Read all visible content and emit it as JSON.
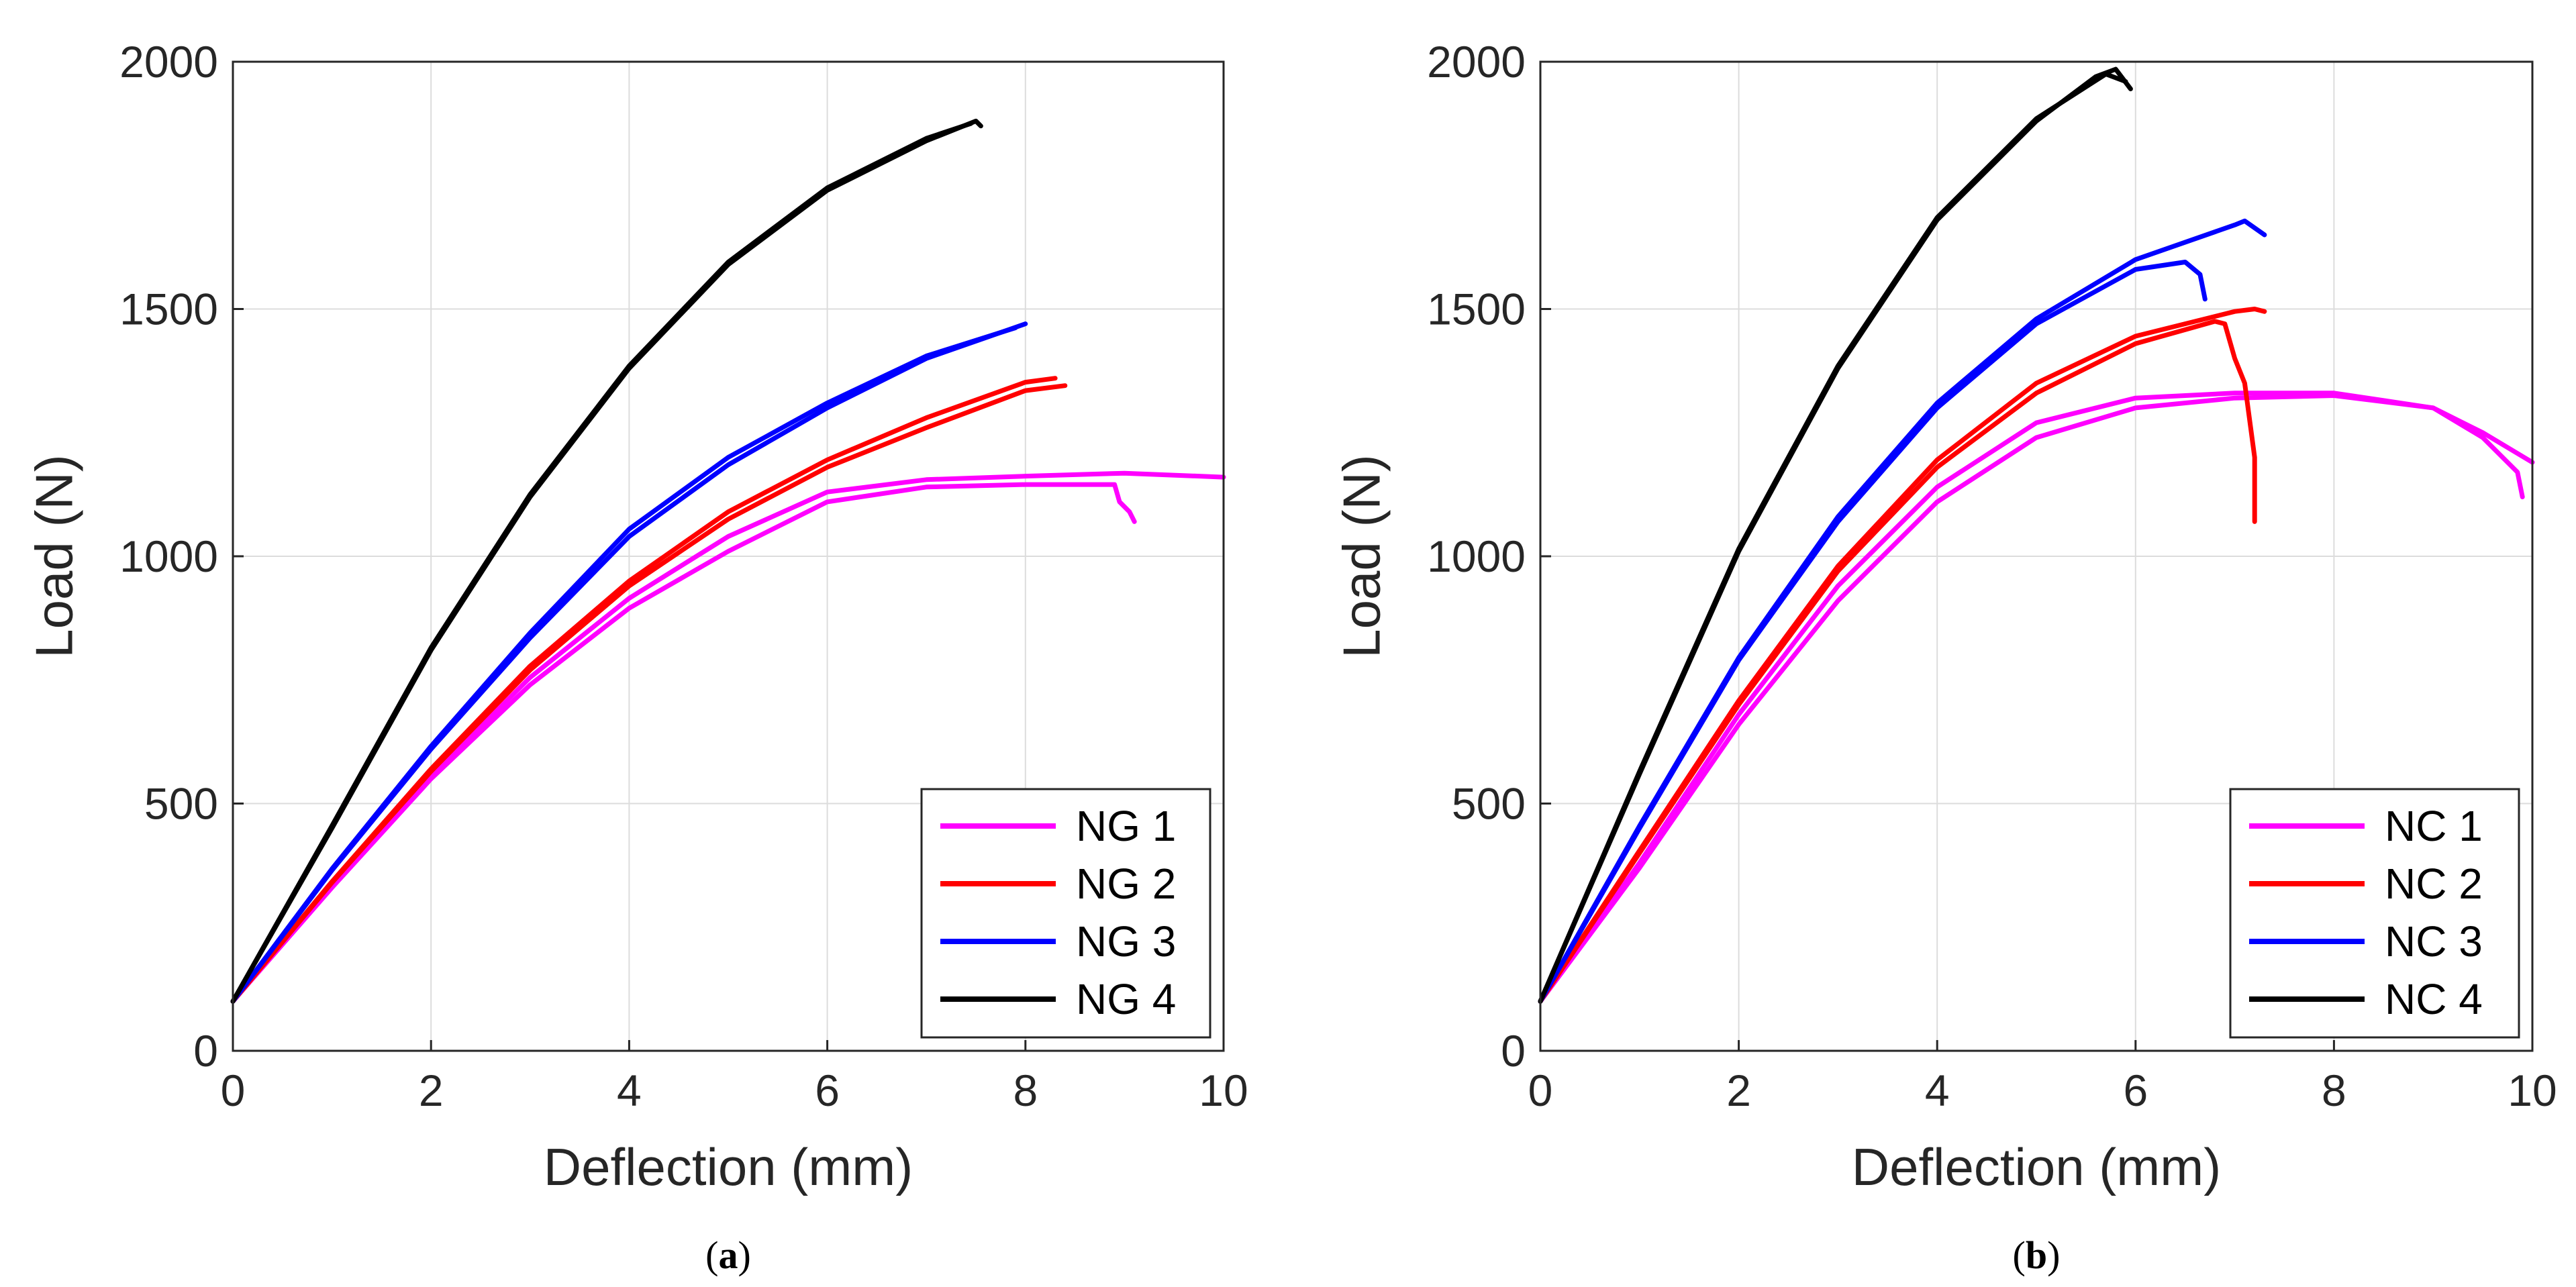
{
  "chart_data": [
    {
      "panel_label": "a",
      "type": "line",
      "xlabel": "Deflection (mm)",
      "ylabel": "Load (N)",
      "xlim": [
        0,
        10
      ],
      "ylim": [
        0,
        2000
      ],
      "xticks": [
        0,
        2,
        4,
        6,
        8,
        10
      ],
      "yticks": [
        0,
        500,
        1000,
        1500,
        2000
      ],
      "grid": true,
      "legend_position": "bottom-right",
      "series": [
        {
          "name": "NG 1",
          "color": "#ff00ff",
          "curves": [
            [
              [
                0,
                100
              ],
              [
                1,
                330
              ],
              [
                2,
                550
              ],
              [
                3,
                740
              ],
              [
                4,
                895
              ],
              [
                5,
                1010
              ],
              [
                6,
                1110
              ],
              [
                7,
                1140
              ],
              [
                8,
                1145
              ],
              [
                8.9,
                1145
              ],
              [
                8.95,
                1110
              ],
              [
                9.05,
                1090
              ],
              [
                9.1,
                1070
              ]
            ],
            [
              [
                0,
                100
              ],
              [
                1,
                335
              ],
              [
                2,
                555
              ],
              [
                3,
                755
              ],
              [
                4,
                915
              ],
              [
                5,
                1040
              ],
              [
                6,
                1130
              ],
              [
                7,
                1155
              ],
              [
                8,
                1162
              ],
              [
                9,
                1168
              ],
              [
                10,
                1160
              ]
            ]
          ]
        },
        {
          "name": "NG 2",
          "color": "#ff0000",
          "curves": [
            [
              [
                0,
                100
              ],
              [
                1,
                340
              ],
              [
                2,
                565
              ],
              [
                3,
                770
              ],
              [
                4,
                940
              ],
              [
                5,
                1075
              ],
              [
                6,
                1180
              ],
              [
                7,
                1260
              ],
              [
                8,
                1335
              ],
              [
                8.4,
                1345
              ]
            ],
            [
              [
                0,
                100
              ],
              [
                1,
                342
              ],
              [
                2,
                570
              ],
              [
                3,
                778
              ],
              [
                4,
                950
              ],
              [
                5,
                1090
              ],
              [
                6,
                1195
              ],
              [
                7,
                1280
              ],
              [
                8,
                1352
              ],
              [
                8.3,
                1360
              ]
            ]
          ]
        },
        {
          "name": "NG 3",
          "color": "#0000ff",
          "curves": [
            [
              [
                0,
                100
              ],
              [
                1,
                365
              ],
              [
                2,
                610
              ],
              [
                3,
                835
              ],
              [
                4,
                1040
              ],
              [
                5,
                1185
              ],
              [
                6,
                1300
              ],
              [
                7,
                1400
              ],
              [
                8,
                1470
              ]
            ],
            [
              [
                0,
                100
              ],
              [
                1,
                368
              ],
              [
                2,
                616
              ],
              [
                3,
                845
              ],
              [
                4,
                1055
              ],
              [
                5,
                1200
              ],
              [
                6,
                1310
              ],
              [
                7,
                1405
              ],
              [
                7.9,
                1462
              ]
            ]
          ]
        },
        {
          "name": "NG 4",
          "color": "#000000",
          "curves": [
            [
              [
                0,
                100
              ],
              [
                1,
                450
              ],
              [
                2,
                810
              ],
              [
                3,
                1120
              ],
              [
                4,
                1380
              ],
              [
                5,
                1590
              ],
              [
                6,
                1740
              ],
              [
                7,
                1840
              ],
              [
                7.5,
                1880
              ],
              [
                7.55,
                1870
              ]
            ],
            [
              [
                0,
                100
              ],
              [
                1,
                455
              ],
              [
                2,
                815
              ],
              [
                3,
                1125
              ],
              [
                4,
                1385
              ],
              [
                5,
                1595
              ],
              [
                6,
                1745
              ],
              [
                7,
                1845
              ],
              [
                7.45,
                1875
              ]
            ]
          ]
        }
      ]
    },
    {
      "panel_label": "b",
      "type": "line",
      "xlabel": "Deflection (mm)",
      "ylabel": "Load (N)",
      "xlim": [
        0,
        10
      ],
      "ylim": [
        0,
        2000
      ],
      "xticks": [
        0,
        2,
        4,
        6,
        8,
        10
      ],
      "yticks": [
        0,
        500,
        1000,
        1500,
        2000
      ],
      "grid": true,
      "legend_position": "bottom-right",
      "series": [
        {
          "name": "NC 1",
          "color": "#ff00ff",
          "curves": [
            [
              [
                0,
                100
              ],
              [
                1,
                370
              ],
              [
                2,
                660
              ],
              [
                3,
                910
              ],
              [
                4,
                1110
              ],
              [
                5,
                1240
              ],
              [
                6,
                1300
              ],
              [
                7,
                1320
              ],
              [
                8,
                1325
              ],
              [
                9,
                1300
              ],
              [
                9.5,
                1240
              ],
              [
                9.85,
                1170
              ],
              [
                9.9,
                1120
              ]
            ],
            [
              [
                0,
                100
              ],
              [
                1,
                380
              ],
              [
                2,
                680
              ],
              [
                3,
                940
              ],
              [
                4,
                1140
              ],
              [
                5,
                1270
              ],
              [
                6,
                1320
              ],
              [
                7,
                1330
              ],
              [
                8,
                1330
              ],
              [
                9,
                1300
              ],
              [
                9.5,
                1250
              ],
              [
                10,
                1190
              ]
            ]
          ]
        },
        {
          "name": "NC 2",
          "color": "#ff0000",
          "curves": [
            [
              [
                0,
                100
              ],
              [
                1,
                400
              ],
              [
                2,
                700
              ],
              [
                3,
                970
              ],
              [
                4,
                1180
              ],
              [
                5,
                1330
              ],
              [
                6,
                1430
              ],
              [
                6.8,
                1475
              ],
              [
                6.9,
                1470
              ],
              [
                7,
                1400
              ],
              [
                7.1,
                1350
              ],
              [
                7.2,
                1200
              ],
              [
                7.2,
                1070
              ]
            ],
            [
              [
                0,
                100
              ],
              [
                1,
                405
              ],
              [
                2,
                708
              ],
              [
                3,
                980
              ],
              [
                4,
                1195
              ],
              [
                5,
                1350
              ],
              [
                6,
                1445
              ],
              [
                7,
                1495
              ],
              [
                7.2,
                1500
              ],
              [
                7.3,
                1495
              ]
            ]
          ]
        },
        {
          "name": "NC 3",
          "color": "#0000ff",
          "curves": [
            [
              [
                0,
                100
              ],
              [
                1,
                450
              ],
              [
                2,
                790
              ],
              [
                3,
                1070
              ],
              [
                4,
                1300
              ],
              [
                5,
                1470
              ],
              [
                6,
                1580
              ],
              [
                6.5,
                1595
              ],
              [
                6.65,
                1570
              ],
              [
                6.7,
                1520
              ]
            ],
            [
              [
                0,
                100
              ],
              [
                1,
                455
              ],
              [
                2,
                795
              ],
              [
                3,
                1080
              ],
              [
                4,
                1310
              ],
              [
                5,
                1480
              ],
              [
                6,
                1600
              ],
              [
                7,
                1670
              ],
              [
                7.1,
                1678
              ],
              [
                7.3,
                1650
              ]
            ]
          ]
        },
        {
          "name": "NC 4",
          "color": "#000000",
          "curves": [
            [
              [
                0,
                100
              ],
              [
                1,
                560
              ],
              [
                2,
                1010
              ],
              [
                3,
                1380
              ],
              [
                4,
                1680
              ],
              [
                5,
                1880
              ],
              [
                5.6,
                1970
              ],
              [
                5.8,
                1985
              ],
              [
                5.95,
                1945
              ]
            ],
            [
              [
                0,
                100
              ],
              [
                1,
                565
              ],
              [
                2,
                1015
              ],
              [
                3,
                1385
              ],
              [
                4,
                1685
              ],
              [
                5,
                1885
              ],
              [
                5.7,
                1975
              ],
              [
                5.9,
                1960
              ]
            ]
          ]
        }
      ]
    }
  ]
}
